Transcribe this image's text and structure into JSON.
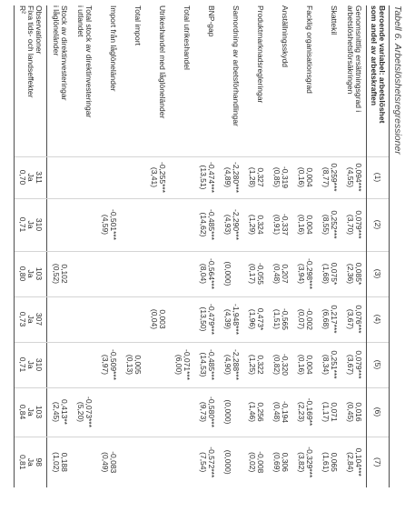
{
  "title": "Tabell 6. Arbetslöshetsregressioner",
  "table": {
    "dependent_variable_label": [
      "Beroende variabel: arbetslöshet",
      "som andel av arbetskraften"
    ],
    "columns": [
      "(1)",
      "(2)",
      "(3)",
      "(4)",
      "(5)",
      "(6)",
      "(7)"
    ],
    "rows": [
      {
        "label": [
          "Genomsnittlig ersättningsgrad i",
          "arbetslöshetsförsäkringen"
        ],
        "coef": [
          "0,094***",
          "0,079***",
          "0,085*",
          "0,076***",
          "0,079***",
          "0,016",
          "0,104***"
        ],
        "tstat": [
          "(4,55)",
          "(3,70)",
          "(2,36)",
          "(3,67)",
          "(3,67)",
          "(0,45)",
          "(2,84)"
        ]
      },
      {
        "label": [
          "Skattekil"
        ],
        "coef": [
          "0,259***",
          "0,252***",
          "0,075*",
          "0,217***",
          "0,251***",
          "0,071",
          "0,065"
        ],
        "tstat": [
          "(8,77)",
          "(8,55)",
          "(1,68)",
          "(6,68)",
          "(8,34)",
          "(1,17)",
          "(1,61)"
        ]
      },
      {
        "label": [
          "Facklig organisationsgrad"
        ],
        "coef": [
          "0,004",
          "0,004",
          "-0,298***",
          "-0,002",
          "0,004",
          "-0,169**",
          "-0,329***"
        ],
        "tstat": [
          "(0,16)",
          "(0,16)",
          "(3,94)",
          "(0,07)",
          "(0,16)",
          "(2,23)",
          "(3,82)"
        ]
      },
      {
        "label": [
          "Anställningsskydd"
        ],
        "coef": [
          "-0,319",
          "-0,337",
          "0,207",
          "-0,565",
          "-0,320",
          "-0,194",
          "0,306"
        ],
        "tstat": [
          "(0,85)",
          "(0,91)",
          "(0,48)",
          "(1,51)",
          "(0,82)",
          "(0,48)",
          "(0,69)"
        ]
      },
      {
        "label": [
          "Produktmarknadsregleringar"
        ],
        "coef": [
          "0,327",
          "0,324",
          "-0,055",
          "0,473*",
          "0,322",
          "0,256",
          "-0,008"
        ],
        "tstat": [
          "(1,28)",
          "(1,29)",
          "(0,17)",
          "(1,96)",
          "(1,25)",
          "(1,46)",
          "(0,02)"
        ]
      },
      {
        "label": [
          "Samordning av arbetsförhandlingar"
        ],
        "coef": [
          "-2,280***",
          "-2,290***",
          null,
          "-1,948***",
          "-2,288***",
          null,
          null
        ],
        "tstat": [
          "(4,89)",
          "(4,93)",
          "(0,000)",
          "(4,39)",
          "(4,90)",
          "(0,000)",
          "(0,000)"
        ]
      },
      {
        "label": [
          "BNP-gap"
        ],
        "coef": [
          "-0,474***",
          "-0,485***",
          "-0,564***",
          "-0,479***",
          "-0,485***",
          "-0,580***",
          "-0,572***"
        ],
        "tstat": [
          "(13,51)",
          "(14,62)",
          "(8,04)",
          "(13,50)",
          "(14,53)",
          "(9,73)",
          "(7,54)"
        ]
      },
      {
        "label": [
          "Total utrikeshandel"
        ],
        "coef": [
          null,
          null,
          null,
          null,
          "-0,071***",
          null,
          null
        ],
        "tstat": [
          null,
          null,
          null,
          null,
          "(6,00)",
          null,
          null
        ]
      },
      {
        "label": [
          "Utrikeshandel med låglöneländer"
        ],
        "coef": [
          "-0,255***",
          null,
          null,
          "0,003",
          null,
          null,
          null
        ],
        "tstat": [
          "(3,41)",
          null,
          null,
          "(0,04)",
          null,
          null,
          null
        ]
      },
      {
        "label": [
          "Total import"
        ],
        "coef": [
          null,
          null,
          null,
          null,
          "0,005",
          null,
          null
        ],
        "tstat": [
          null,
          null,
          null,
          null,
          "(0,13)",
          null,
          null
        ]
      },
      {
        "label": [
          "Import från låglöneländer"
        ],
        "coef": [
          null,
          "-0,501***",
          null,
          null,
          "-0,509***",
          null,
          "-0,083"
        ],
        "tstat": [
          null,
          "(4,59)",
          null,
          null,
          "(3,97)",
          null,
          "(0,49)"
        ]
      },
      {
        "label": [
          "Total stock av direktinvesteringar",
          "i utlandet"
        ],
        "coef": [
          null,
          null,
          null,
          null,
          null,
          "-0,073***",
          null
        ],
        "tstat": [
          null,
          null,
          null,
          null,
          null,
          "(5,20)",
          null
        ]
      },
      {
        "label": [
          "Stock av direktinvesteringar",
          "i låglöneländer"
        ],
        "coef": [
          null,
          null,
          "0,102",
          null,
          null,
          "0,413**",
          "0,188"
        ],
        "tstat": [
          null,
          null,
          "(0,52)",
          null,
          null,
          "(2,45)",
          "(1,02)"
        ]
      }
    ],
    "footer": [
      {
        "label": "Observationer",
        "values": [
          "311",
          "310",
          "103",
          "307",
          "310",
          "103",
          "98"
        ]
      },
      {
        "label": "Fixa tids- och landseffekter",
        "values": [
          "Ja",
          "Ja",
          "Ja",
          "Ja",
          "Ja",
          "Ja",
          "Ja"
        ]
      },
      {
        "label": "R²",
        "values": [
          "0,70",
          "0,71",
          "0,80",
          "0,73",
          "0,71",
          "0,84",
          "0,81"
        ]
      }
    ]
  }
}
